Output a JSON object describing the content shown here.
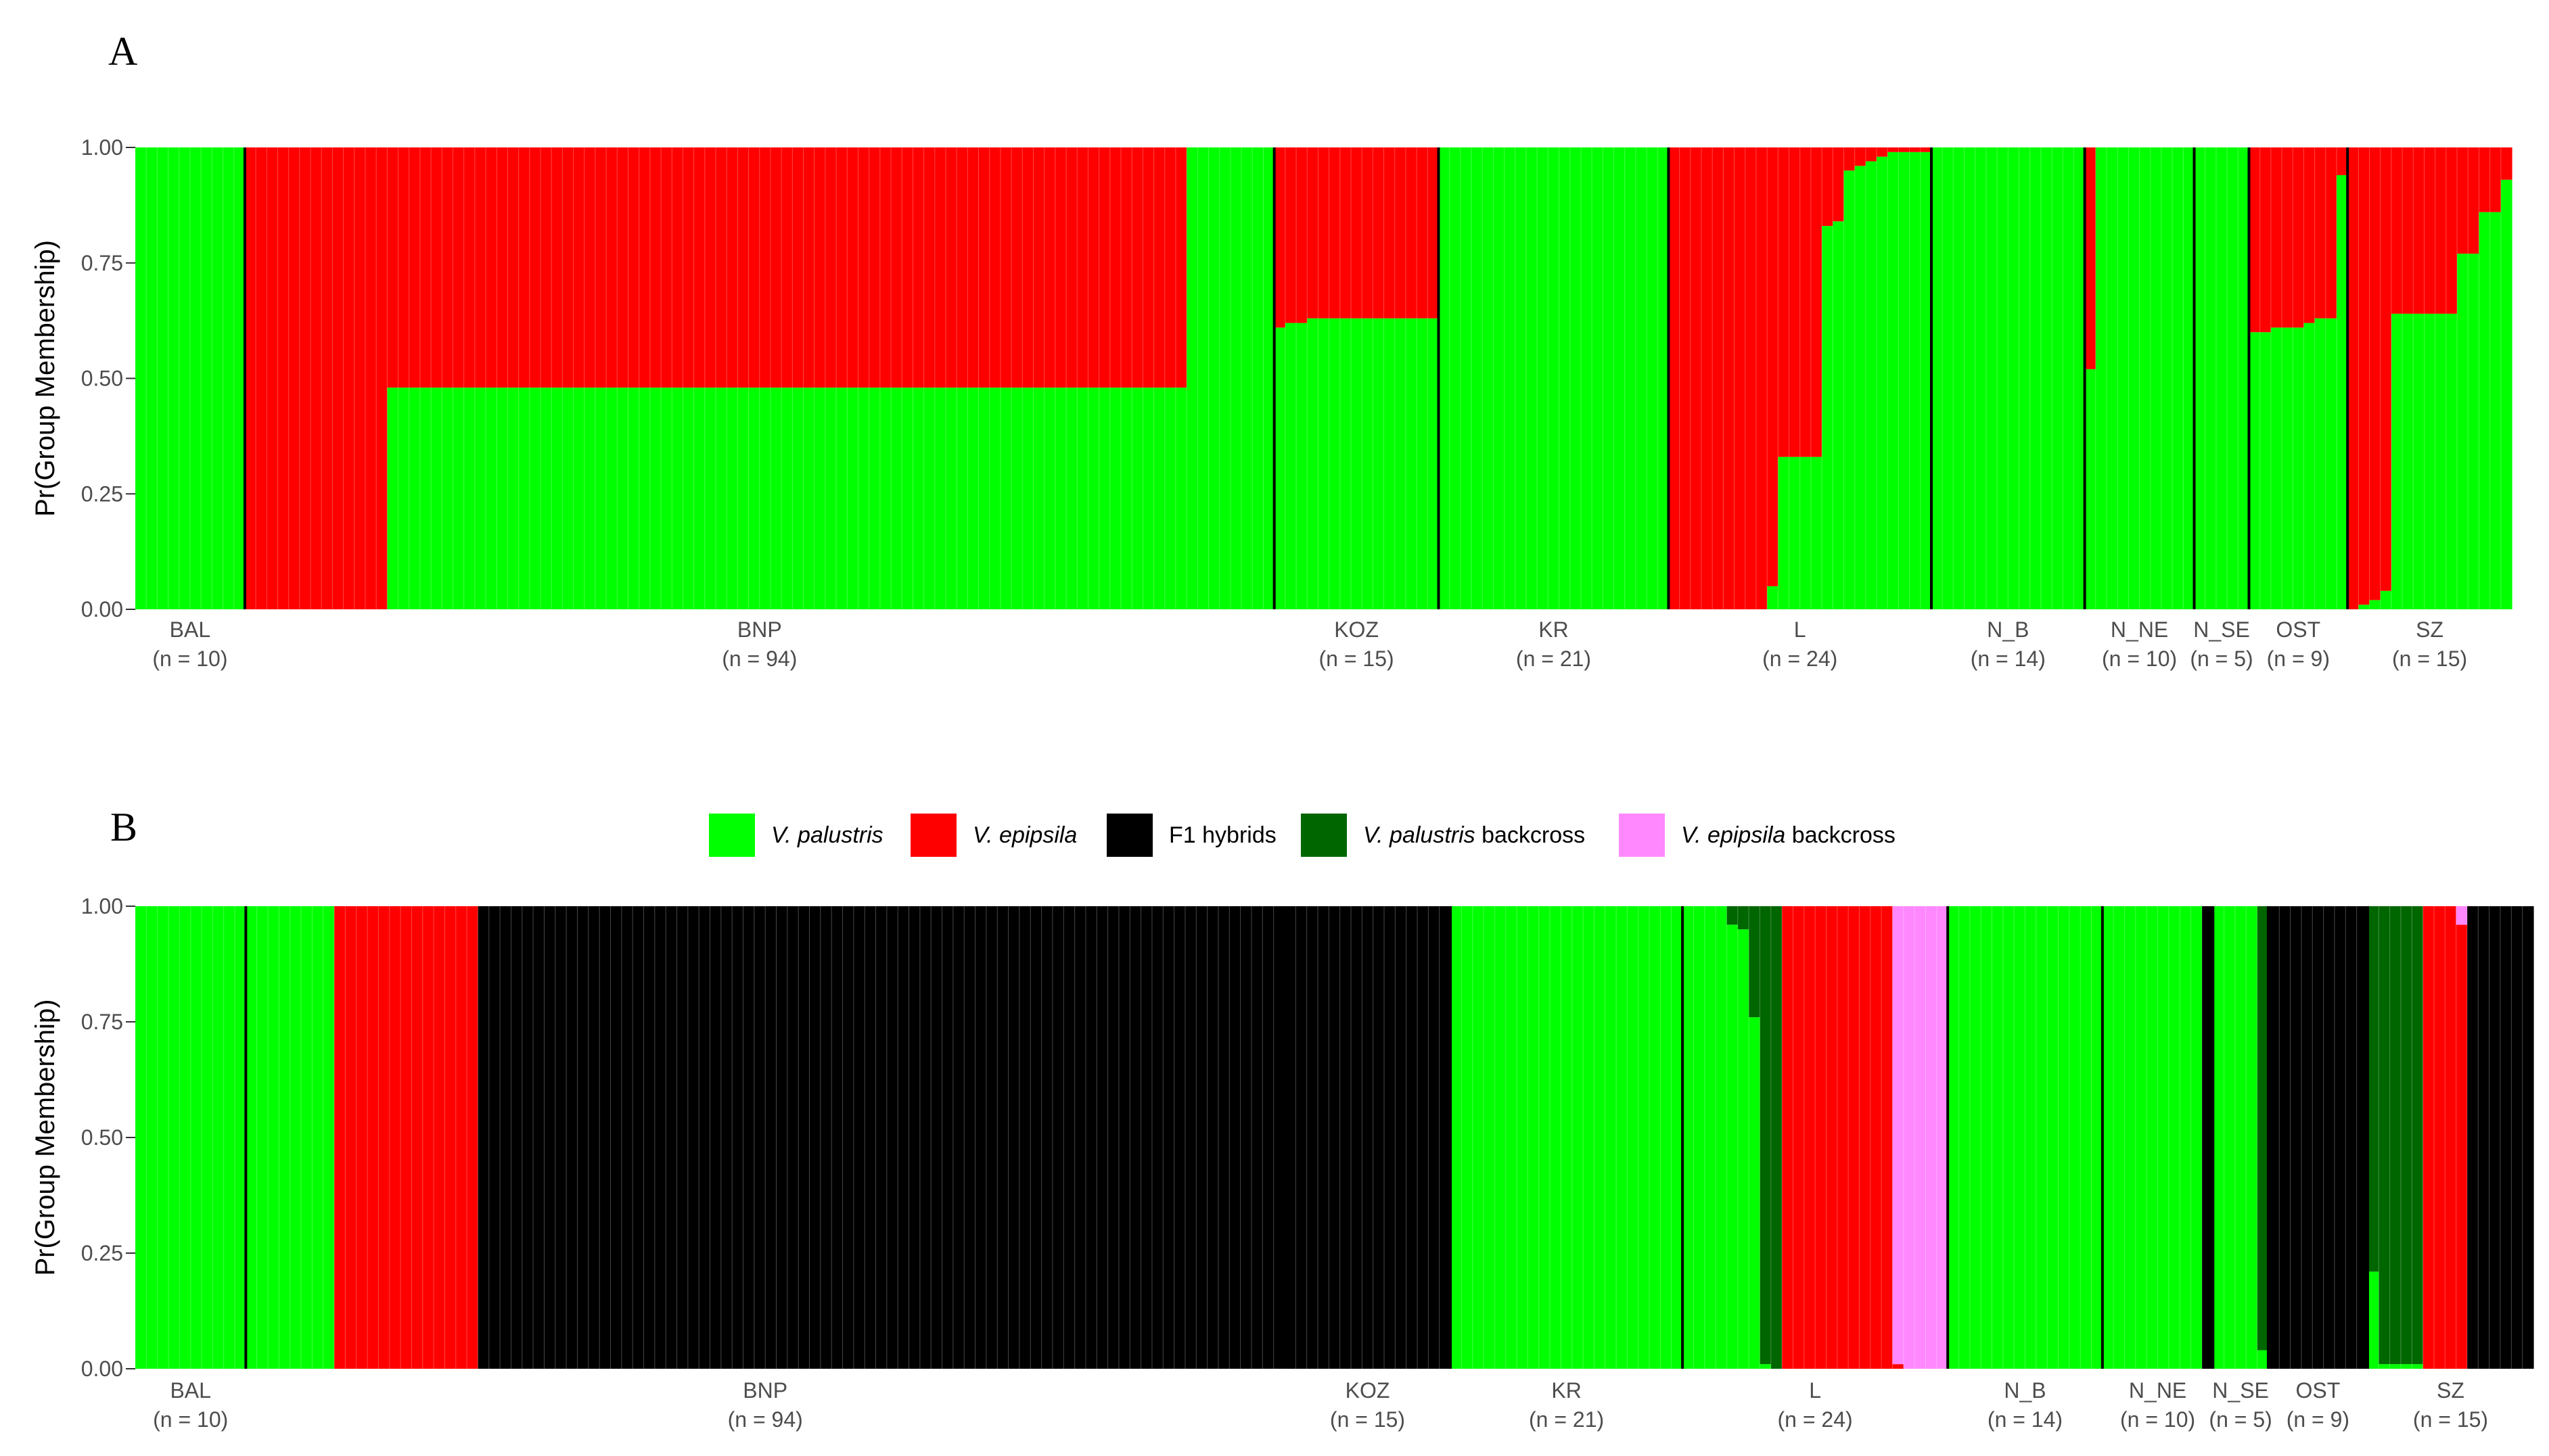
{
  "colors": {
    "V. palustris": "#00ff00",
    "V. epipsila": "#ff0000",
    "F1 hybrids": "#000000",
    "V. palustris backcross": "#006600",
    "V. epipsila backcross": "#ff88ff"
  },
  "legend": [
    {
      "key": "V. palustris",
      "italic": "V. palustris",
      "rest": ""
    },
    {
      "key": "V. epipsila",
      "italic": "V. epipsila",
      "rest": ""
    },
    {
      "key": "F1 hybrids",
      "italic": "",
      "rest": "F1 hybrids"
    },
    {
      "key": "V. palustris backcross",
      "italic": "V. palustris",
      "rest": " backcross"
    },
    {
      "key": "V. epipsila backcross",
      "italic": "V. epipsila",
      "rest": " backcross"
    }
  ],
  "chart_data": [
    {
      "panel": "A",
      "type": "bar",
      "stacked": true,
      "ylabel": "Pr(Group Membership)",
      "ylim": [
        0,
        1
      ],
      "yticks": [
        "0.00",
        "0.25",
        "0.50",
        "0.75",
        "1.00"
      ],
      "populations": [
        {
          "name": "BAL",
          "n": "(n = 10)",
          "segments": [
            {
              "count": 10,
              "values": {
                "V. palustris": 1.0
              }
            }
          ]
        },
        {
          "name": "BNP",
          "n": "(n = 94)",
          "segments": [
            {
              "count": 13,
              "values": {
                "V. epipsila": 1.0
              }
            },
            {
              "count": 73,
              "values": {
                "V. palustris": 0.48,
                "V. epipsila": 0.52
              }
            },
            {
              "count": 8,
              "values": {
                "V. palustris": 1.0
              }
            }
          ]
        },
        {
          "name": "KOZ",
          "n": "(n = 15)",
          "segments": [
            {
              "count": 1,
              "values": {
                "V. palustris": 0.61,
                "V. epipsila": 0.39
              }
            },
            {
              "count": 2,
              "values": {
                "V. palustris": 0.62,
                "V. epipsila": 0.38
              }
            },
            {
              "count": 12,
              "values": {
                "V. palustris": 0.63,
                "V. epipsila": 0.37
              }
            }
          ]
        },
        {
          "name": "KR",
          "n": "(n = 21)",
          "segments": [
            {
              "count": 21,
              "values": {
                "V. palustris": 1.0
              }
            }
          ]
        },
        {
          "name": "L",
          "n": "(n = 24)",
          "segments": [
            {
              "count": 9,
              "values": {
                "V. epipsila": 1.0
              }
            },
            {
              "count": 1,
              "values": {
                "V. palustris": 0.05,
                "V. epipsila": 0.95
              }
            },
            {
              "count": 4,
              "values": {
                "V. palustris": 0.33,
                "V. epipsila": 0.67
              }
            },
            {
              "count": 1,
              "values": {
                "V. palustris": 0.83,
                "V. epipsila": 0.17
              }
            },
            {
              "count": 1,
              "values": {
                "V. palustris": 0.84,
                "V. epipsila": 0.16
              }
            },
            {
              "count": 1,
              "values": {
                "V. palustris": 0.95,
                "V. epipsila": 0.05
              }
            },
            {
              "count": 1,
              "values": {
                "V. palustris": 0.96,
                "V. epipsila": 0.04
              }
            },
            {
              "count": 1,
              "values": {
                "V. palustris": 0.97,
                "V. epipsila": 0.03
              }
            },
            {
              "count": 1,
              "values": {
                "V. palustris": 0.98,
                "V. epipsila": 0.02
              }
            },
            {
              "count": 4,
              "values": {
                "V. palustris": 0.99,
                "V. epipsila": 0.01
              }
            }
          ]
        },
        {
          "name": "N_B",
          "n": "(n = 14)",
          "segments": [
            {
              "count": 14,
              "values": {
                "V. palustris": 1.0
              }
            }
          ]
        },
        {
          "name": "N_NE",
          "n": "(n = 10)",
          "segments": [
            {
              "count": 1,
              "values": {
                "V. palustris": 0.52,
                "V. epipsila": 0.48
              }
            },
            {
              "count": 9,
              "values": {
                "V. palustris": 1.0
              }
            }
          ]
        },
        {
          "name": "N_SE",
          "n": "(n = 5)",
          "segments": [
            {
              "count": 5,
              "values": {
                "V. palustris": 1.0
              }
            }
          ]
        },
        {
          "name": "OST",
          "n": "(n = 9)",
          "segments": [
            {
              "count": 2,
              "values": {
                "V. palustris": 0.6,
                "V. epipsila": 0.4
              }
            },
            {
              "count": 3,
              "values": {
                "V. palustris": 0.61,
                "V. epipsila": 0.39
              }
            },
            {
              "count": 1,
              "values": {
                "V. palustris": 0.62,
                "V. epipsila": 0.38
              }
            },
            {
              "count": 2,
              "values": {
                "V. palustris": 0.63,
                "V. epipsila": 0.37
              }
            },
            {
              "count": 1,
              "values": {
                "V. palustris": 0.94,
                "V. epipsila": 0.06
              }
            }
          ]
        },
        {
          "name": "SZ",
          "n": "(n = 15)",
          "segments": [
            {
              "count": 1,
              "values": {
                "V. palustris": 0.0,
                "V. epipsila": 1.0
              }
            },
            {
              "count": 1,
              "values": {
                "V. palustris": 0.01,
                "V. epipsila": 0.99
              }
            },
            {
              "count": 1,
              "values": {
                "V. palustris": 0.02,
                "V. epipsila": 0.98
              }
            },
            {
              "count": 1,
              "values": {
                "V. palustris": 0.04,
                "V. epipsila": 0.96
              }
            },
            {
              "count": 6,
              "values": {
                "V. palustris": 0.64,
                "V. epipsila": 0.36
              }
            },
            {
              "count": 2,
              "values": {
                "V. palustris": 0.77,
                "V. epipsila": 0.23
              }
            },
            {
              "count": 2,
              "values": {
                "V. palustris": 0.86,
                "V. epipsila": 0.14
              }
            },
            {
              "count": 1,
              "values": {
                "V. palustris": 0.93,
                "V. epipsila": 0.07
              }
            }
          ]
        }
      ]
    },
    {
      "panel": "B",
      "type": "bar",
      "stacked": true,
      "ylabel": "Pr(Group Membership)",
      "ylim": [
        0,
        1
      ],
      "yticks": [
        "0.00",
        "0.25",
        "0.50",
        "0.75",
        "1.00"
      ],
      "populations": [
        {
          "name": "BAL",
          "n": "(n = 10)",
          "segments": [
            {
              "count": 10,
              "values": {
                "V. palustris": 1.0
              }
            }
          ]
        },
        {
          "name": "BNP",
          "n": "(n = 94)",
          "segments": [
            {
              "count": 8,
              "values": {
                "V. palustris": 1.0
              }
            },
            {
              "count": 13,
              "values": {
                "V. epipsila": 1.0
              }
            },
            {
              "count": 73,
              "values": {
                "F1 hybrids": 1.0
              }
            }
          ]
        },
        {
          "name": "KOZ",
          "n": "(n = 15)",
          "segments": [
            {
              "count": 15,
              "values": {
                "F1 hybrids": 1.0
              }
            }
          ]
        },
        {
          "name": "KR",
          "n": "(n = 21)",
          "segments": [
            {
              "count": 21,
              "values": {
                "V. palustris": 1.0
              }
            }
          ]
        },
        {
          "name": "L",
          "n": "(n = 24)",
          "segments": [
            {
              "count": 4,
              "values": {
                "V. palustris": 1.0
              }
            },
            {
              "count": 1,
              "values": {
                "V. palustris": 0.96,
                "V. palustris backcross": 0.04
              }
            },
            {
              "count": 1,
              "values": {
                "V. palustris": 0.95,
                "V. palustris backcross": 0.05
              }
            },
            {
              "count": 1,
              "values": {
                "V. palustris": 0.76,
                "V. palustris backcross": 0.24
              }
            },
            {
              "count": 1,
              "values": {
                "V. palustris": 0.01,
                "V. palustris backcross": 0.99
              }
            },
            {
              "count": 1,
              "values": {
                "V. palustris": 0.0,
                "V. palustris backcross": 1.0
              }
            },
            {
              "count": 10,
              "values": {
                "V. epipsila": 1.0
              }
            },
            {
              "count": 1,
              "values": {
                "V. epipsila": 0.01,
                "V. epipsila backcross": 0.99
              }
            },
            {
              "count": 4,
              "values": {
                "V. epipsila backcross": 1.0
              }
            }
          ]
        },
        {
          "name": "N_B",
          "n": "(n = 14)",
          "segments": [
            {
              "count": 14,
              "values": {
                "V. palustris": 1.0
              }
            }
          ]
        },
        {
          "name": "N_NE",
          "n": "(n = 10)",
          "segments": [
            {
              "count": 9,
              "values": {
                "V. palustris": 1.0
              }
            },
            {
              "count": 1,
              "values": {
                "F1 hybrids": 1.0
              }
            }
          ]
        },
        {
          "name": "N_SE",
          "n": "(n = 5)",
          "segments": [
            {
              "count": 4,
              "values": {
                "V. palustris": 1.0
              }
            },
            {
              "count": 1,
              "values": {
                "V. palustris": 0.04,
                "V. palustris backcross": 0.96
              }
            }
          ]
        },
        {
          "name": "OST",
          "n": "(n = 9)",
          "segments": [
            {
              "count": 9,
              "values": {
                "F1 hybrids": 1.0
              }
            }
          ]
        },
        {
          "name": "SZ",
          "n": "(n = 15)",
          "segments": [
            {
              "count": 1,
              "values": {
                "V. palustris": 0.21,
                "V. palustris backcross": 0.79
              }
            },
            {
              "count": 4,
              "values": {
                "V. palustris": 0.01,
                "V. palustris backcross": 0.99
              }
            },
            {
              "count": 3,
              "values": {
                "V. epipsila": 1.0
              }
            },
            {
              "count": 1,
              "values": {
                "V. epipsila": 0.96,
                "V. epipsila backcross": 0.04
              }
            },
            {
              "count": 6,
              "values": {
                "F1 hybrids": 1.0
              }
            }
          ]
        }
      ]
    }
  ]
}
